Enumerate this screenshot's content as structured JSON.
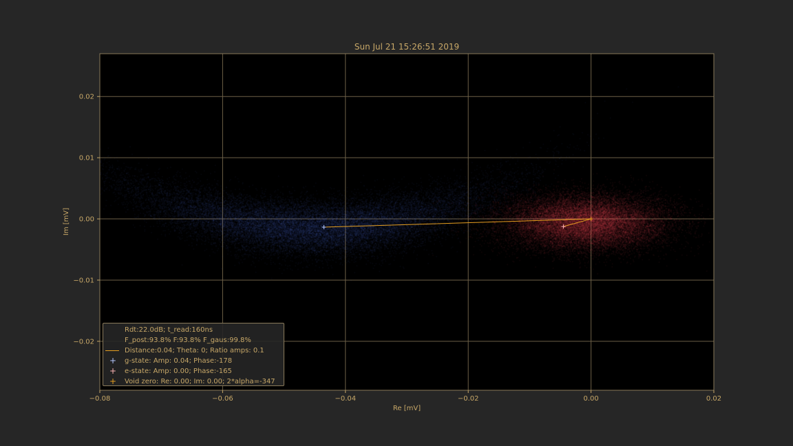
{
  "chart_data": {
    "type": "scatter",
    "title": "Sun Jul 21 15:26:51 2019",
    "xlabel": "Re [mV]",
    "ylabel": "Im [mV]",
    "xlim": [
      -0.08,
      0.02
    ],
    "ylim": [
      -0.028,
      0.027
    ],
    "xticks": [
      -0.08,
      -0.06,
      -0.04,
      -0.02,
      0.0,
      0.02
    ],
    "xtick_labels": [
      "−0.08",
      "−0.06",
      "−0.04",
      "−0.02",
      "0.00",
      "0.02"
    ],
    "yticks": [
      -0.02,
      -0.01,
      0.0,
      0.01,
      0.02
    ],
    "ytick_labels": [
      "−0.02",
      "−0.01",
      "0.00",
      "0.01",
      "0.02"
    ],
    "grid": true,
    "colors": {
      "background": "#262626",
      "plot_bg": "#000000",
      "axis_text": "#c8a868",
      "grid": "#6e6148",
      "g_state": "#5a78c8",
      "e_state": "#f05a64",
      "connector": "#e8a020"
    },
    "clouds": [
      {
        "name": "g-state",
        "color": "#5a78c8",
        "center": [
          -0.045,
          -0.0015
        ],
        "sx": 0.014,
        "sy": 0.0022,
        "curvature": 0.0055
      },
      {
        "name": "e-state",
        "color": "#f05a64",
        "center": [
          -0.001,
          -0.0005
        ],
        "sx": 0.0065,
        "sy": 0.0022,
        "curvature": 0.0
      }
    ],
    "markers": {
      "g_state": [
        -0.0435,
        -0.00135
      ],
      "e_state": [
        -0.0045,
        -0.00125
      ],
      "void_zero": [
        0.0,
        0.0
      ]
    },
    "connector_path": [
      [
        -0.0435,
        -0.00135
      ],
      [
        0.0,
        0.0
      ],
      [
        -0.0045,
        -0.00125
      ]
    ],
    "legend": {
      "placement": "lower-left",
      "lines": [
        {
          "text": "Rdt:22.0dB; t_read:160ns",
          "handle": "none"
        },
        {
          "text": "F_post:93.8% F:93.8% F_gaus:99.8%",
          "handle": "none"
        },
        {
          "text": "Distance:0.04; Theta: 0; Ratio amps:  0.1",
          "handle": "line",
          "color": "#e8a020"
        },
        {
          "text": "g-state: Amp: 0.04; Phase:-178",
          "handle": "plus",
          "color": "#b4c8ff"
        },
        {
          "text": "e-state: Amp: 0.00; Phase:-165",
          "handle": "plus",
          "color": "#ffb4b4"
        },
        {
          "text": "Void zero: Re: 0.00; Im: 0.00; 2*alpha=-347",
          "handle": "plus",
          "color": "#e8a020"
        }
      ]
    }
  }
}
